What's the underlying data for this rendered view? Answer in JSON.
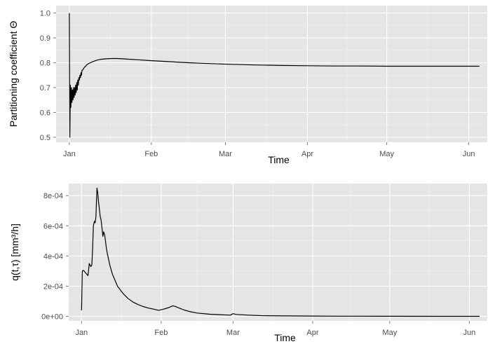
{
  "chart_data": [
    {
      "type": "line",
      "xlabel": "Time",
      "ylabel": "Partitioning coefficient Θ",
      "x_tick_labels": [
        "Jan",
        "Feb",
        "Mar",
        "Apr",
        "May",
        "Jun"
      ],
      "x_tick_days": [
        0,
        31,
        59,
        90,
        120,
        151
      ],
      "xlim_days": [
        -5,
        158
      ],
      "ylim": [
        0.48,
        1.03
      ],
      "y_ticks": [
        0.5,
        0.6,
        0.7,
        0.8,
        0.9,
        1.0
      ],
      "y_tick_labels": [
        "0.5",
        "0.6",
        "0.7",
        "0.8",
        "0.9",
        "1.0"
      ],
      "grid": true,
      "series": [
        {
          "x": [
            0,
            0.2,
            0.4,
            0.6,
            0.8,
            1.0,
            1.2,
            1.4,
            1.6,
            1.8,
            2.0,
            2.2,
            2.4,
            2.6,
            2.8,
            3.0,
            3.2,
            3.4,
            3.6,
            3.8,
            4.0,
            4.2,
            4.4,
            4.6,
            4.8,
            5.0,
            5.3,
            5.6,
            6.0,
            6.5,
            7,
            8,
            9,
            10,
            11,
            12,
            14,
            16,
            18,
            20,
            23,
            26,
            30,
            35,
            40,
            45,
            50,
            60,
            70,
            80,
            90,
            100,
            110,
            120,
            130,
            140,
            150,
            155
          ],
          "values": [
            1.0,
            0.5,
            0.71,
            0.62,
            0.7,
            0.64,
            0.69,
            0.65,
            0.7,
            0.66,
            0.7,
            0.67,
            0.71,
            0.68,
            0.72,
            0.69,
            0.73,
            0.71,
            0.74,
            0.73,
            0.75,
            0.74,
            0.76,
            0.75,
            0.77,
            0.77,
            0.775,
            0.78,
            0.785,
            0.79,
            0.795,
            0.8,
            0.805,
            0.809,
            0.812,
            0.814,
            0.816,
            0.817,
            0.817,
            0.816,
            0.814,
            0.812,
            0.809,
            0.806,
            0.803,
            0.8,
            0.798,
            0.794,
            0.791,
            0.789,
            0.788,
            0.787,
            0.787,
            0.786,
            0.786,
            0.786,
            0.786,
            0.786
          ]
        }
      ]
    },
    {
      "type": "line",
      "xlabel": "Time",
      "ylabel": "q(t,τ) [mm³/h]",
      "x_tick_labels": [
        "Jan",
        "Feb",
        "Mar",
        "Apr",
        "May",
        "Jun"
      ],
      "x_tick_days": [
        0,
        31,
        59,
        90,
        120,
        151
      ],
      "xlim_days": [
        -5,
        158
      ],
      "ylim": [
        -3e-05,
        0.00088
      ],
      "y_ticks": [
        0,
        0.0002,
        0.0004,
        0.0006,
        0.0008
      ],
      "y_tick_labels": [
        "0e+00",
        "2e-04",
        "4e-04",
        "6e-04",
        "8e-04"
      ],
      "grid": true,
      "series": [
        {
          "x": [
            0,
            0.3,
            0.6,
            1.0,
            1.5,
            2.0,
            2.5,
            3.0,
            3.3,
            3.6,
            4.0,
            4.3,
            4.6,
            5.0,
            5.3,
            5.6,
            6.0,
            6.3,
            6.6,
            7.0,
            7.3,
            7.6,
            8.0,
            8.3,
            8.6,
            9.0,
            9.3,
            9.6,
            10.0,
            10.5,
            11,
            12,
            13,
            14,
            16,
            18,
            20,
            22,
            24,
            26,
            28,
            30,
            32,
            34,
            35,
            35.5,
            36,
            36.5,
            37,
            38,
            40,
            42,
            45,
            50,
            55,
            58,
            59,
            59.5,
            60,
            62,
            65,
            70,
            80,
            90,
            100,
            120,
            140,
            155
          ],
          "values": [
            4e-05,
            0.0003,
            0.000305,
            0.0003,
            0.00029,
            0.00028,
            0.00027,
            0.00035,
            0.00034,
            0.00033,
            0.00034,
            0.00045,
            0.0006,
            0.00063,
            0.00062,
            0.00066,
            0.00085,
            0.00082,
            0.00076,
            0.0007,
            0.00066,
            0.00064,
            0.00058,
            0.00053,
            0.00056,
            0.00054,
            0.0005,
            0.00046,
            0.00042,
            0.00038,
            0.00034,
            0.00028,
            0.00024,
            0.0002,
            0.000155,
            0.00012,
            9.5e-05,
            7.8e-05,
            6.5e-05,
            5.5e-05,
            4.8e-05,
            4e-05,
            4.8e-05,
            5.8e-05,
            6.6e-05,
            7e-05,
            6.8e-05,
            6.6e-05,
            6.2e-05,
            5.5e-05,
            4.2e-05,
            3.2e-05,
            2.2e-05,
            1.4e-05,
            1e-05,
            8e-06,
            1.8e-05,
            1.6e-05,
            1.3e-05,
            1.1e-05,
            8e-06,
            5e-06,
            3e-06,
            2e-06,
            1e-06,
            5e-07,
            3e-07,
            2e-07
          ]
        }
      ]
    }
  ]
}
